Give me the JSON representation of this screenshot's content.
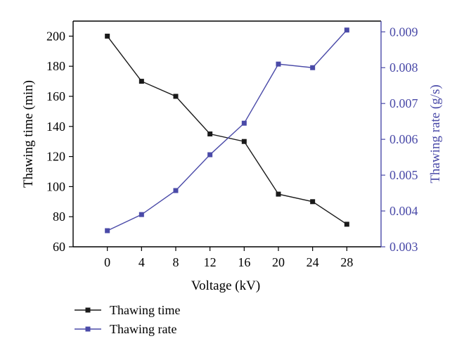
{
  "chart_data": {
    "type": "line",
    "x": [
      0,
      4,
      8,
      12,
      16,
      20,
      24,
      28
    ],
    "xlabel": "Voltage (kV)",
    "xlim": [
      -4,
      32
    ],
    "xticks": [
      "0",
      "4",
      "8",
      "12",
      "16",
      "20",
      "24",
      "28"
    ],
    "y_left": {
      "label": "Thawing time (min)",
      "lim": [
        60,
        210
      ],
      "ticks": [
        "60",
        "80",
        "100",
        "120",
        "140",
        "160",
        "180",
        "200"
      ],
      "color": "#000000"
    },
    "y_right": {
      "label": "Thawing rate (g/s)",
      "lim": [
        0.003,
        0.0093
      ],
      "ticks": [
        "0.003",
        "0.004",
        "0.005",
        "0.006",
        "0.007",
        "0.008",
        "0.009"
      ],
      "color": "#4a4aa8"
    },
    "series": [
      {
        "name": "Thawing time",
        "axis": "left",
        "color": "#1a1a1a",
        "marker": "square",
        "values": [
          200,
          170,
          160,
          135,
          130,
          95,
          90,
          75
        ]
      },
      {
        "name": "Thawing rate",
        "axis": "right",
        "color": "#4a4aa8",
        "marker": "square",
        "values": [
          0.00345,
          0.0039,
          0.00457,
          0.00557,
          0.00645,
          0.0081,
          0.008,
          0.00905
        ]
      }
    ],
    "legend_position": "bottom-left",
    "grid": false
  }
}
